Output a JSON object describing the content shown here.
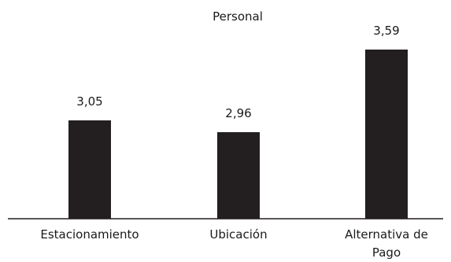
{
  "chart_data": {
    "type": "bar",
    "title": "Personal",
    "categories": [
      "Estacionamiento",
      "Ubicación",
      "Alternativa de Pago"
    ],
    "category_lines": [
      [
        "Estacionamiento"
      ],
      [
        "Ubicación"
      ],
      [
        "Alternativa de",
        "Pago"
      ]
    ],
    "values": [
      3.05,
      2.96,
      3.59
    ],
    "value_labels": [
      "3,05",
      "2,96",
      "3,59"
    ],
    "xlabel": "",
    "ylabel": "",
    "ylim": [
      2.3,
      3.7
    ],
    "grid": false,
    "legend": "none",
    "bar_color": "#231f20",
    "axis_color": "#231f20"
  }
}
